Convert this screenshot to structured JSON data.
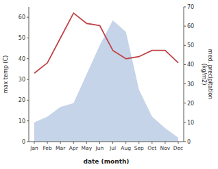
{
  "chart_data": {
    "type": "line",
    "categories": [
      "Jan",
      "Feb",
      "Mar",
      "Apr",
      "May",
      "Jun",
      "Jul",
      "Aug",
      "Sep",
      "Oct",
      "Nov",
      "Dec"
    ],
    "xlabel": "date (month)",
    "ylabel": "max temp (C)",
    "y2label": "med. precipitation\n(kg/m2)",
    "ylim": [
      0,
      65
    ],
    "yticks": [
      0,
      10,
      20,
      30,
      40,
      50,
      60
    ],
    "y2lim": [
      0,
      70
    ],
    "y2ticks": [
      0,
      10,
      20,
      30,
      40,
      50,
      60,
      70
    ],
    "series": [
      {
        "type": "area",
        "axis": "y2",
        "color": "#c5d4e8",
        "values": [
          10,
          13,
          18,
          20,
          35,
          50,
          63,
          57,
          27,
          13,
          7,
          2
        ]
      },
      {
        "type": "line",
        "color": "#c0444a",
        "values": [
          33,
          38,
          50,
          62,
          57,
          56,
          44,
          40,
          41,
          44,
          44,
          38
        ]
      }
    ]
  }
}
